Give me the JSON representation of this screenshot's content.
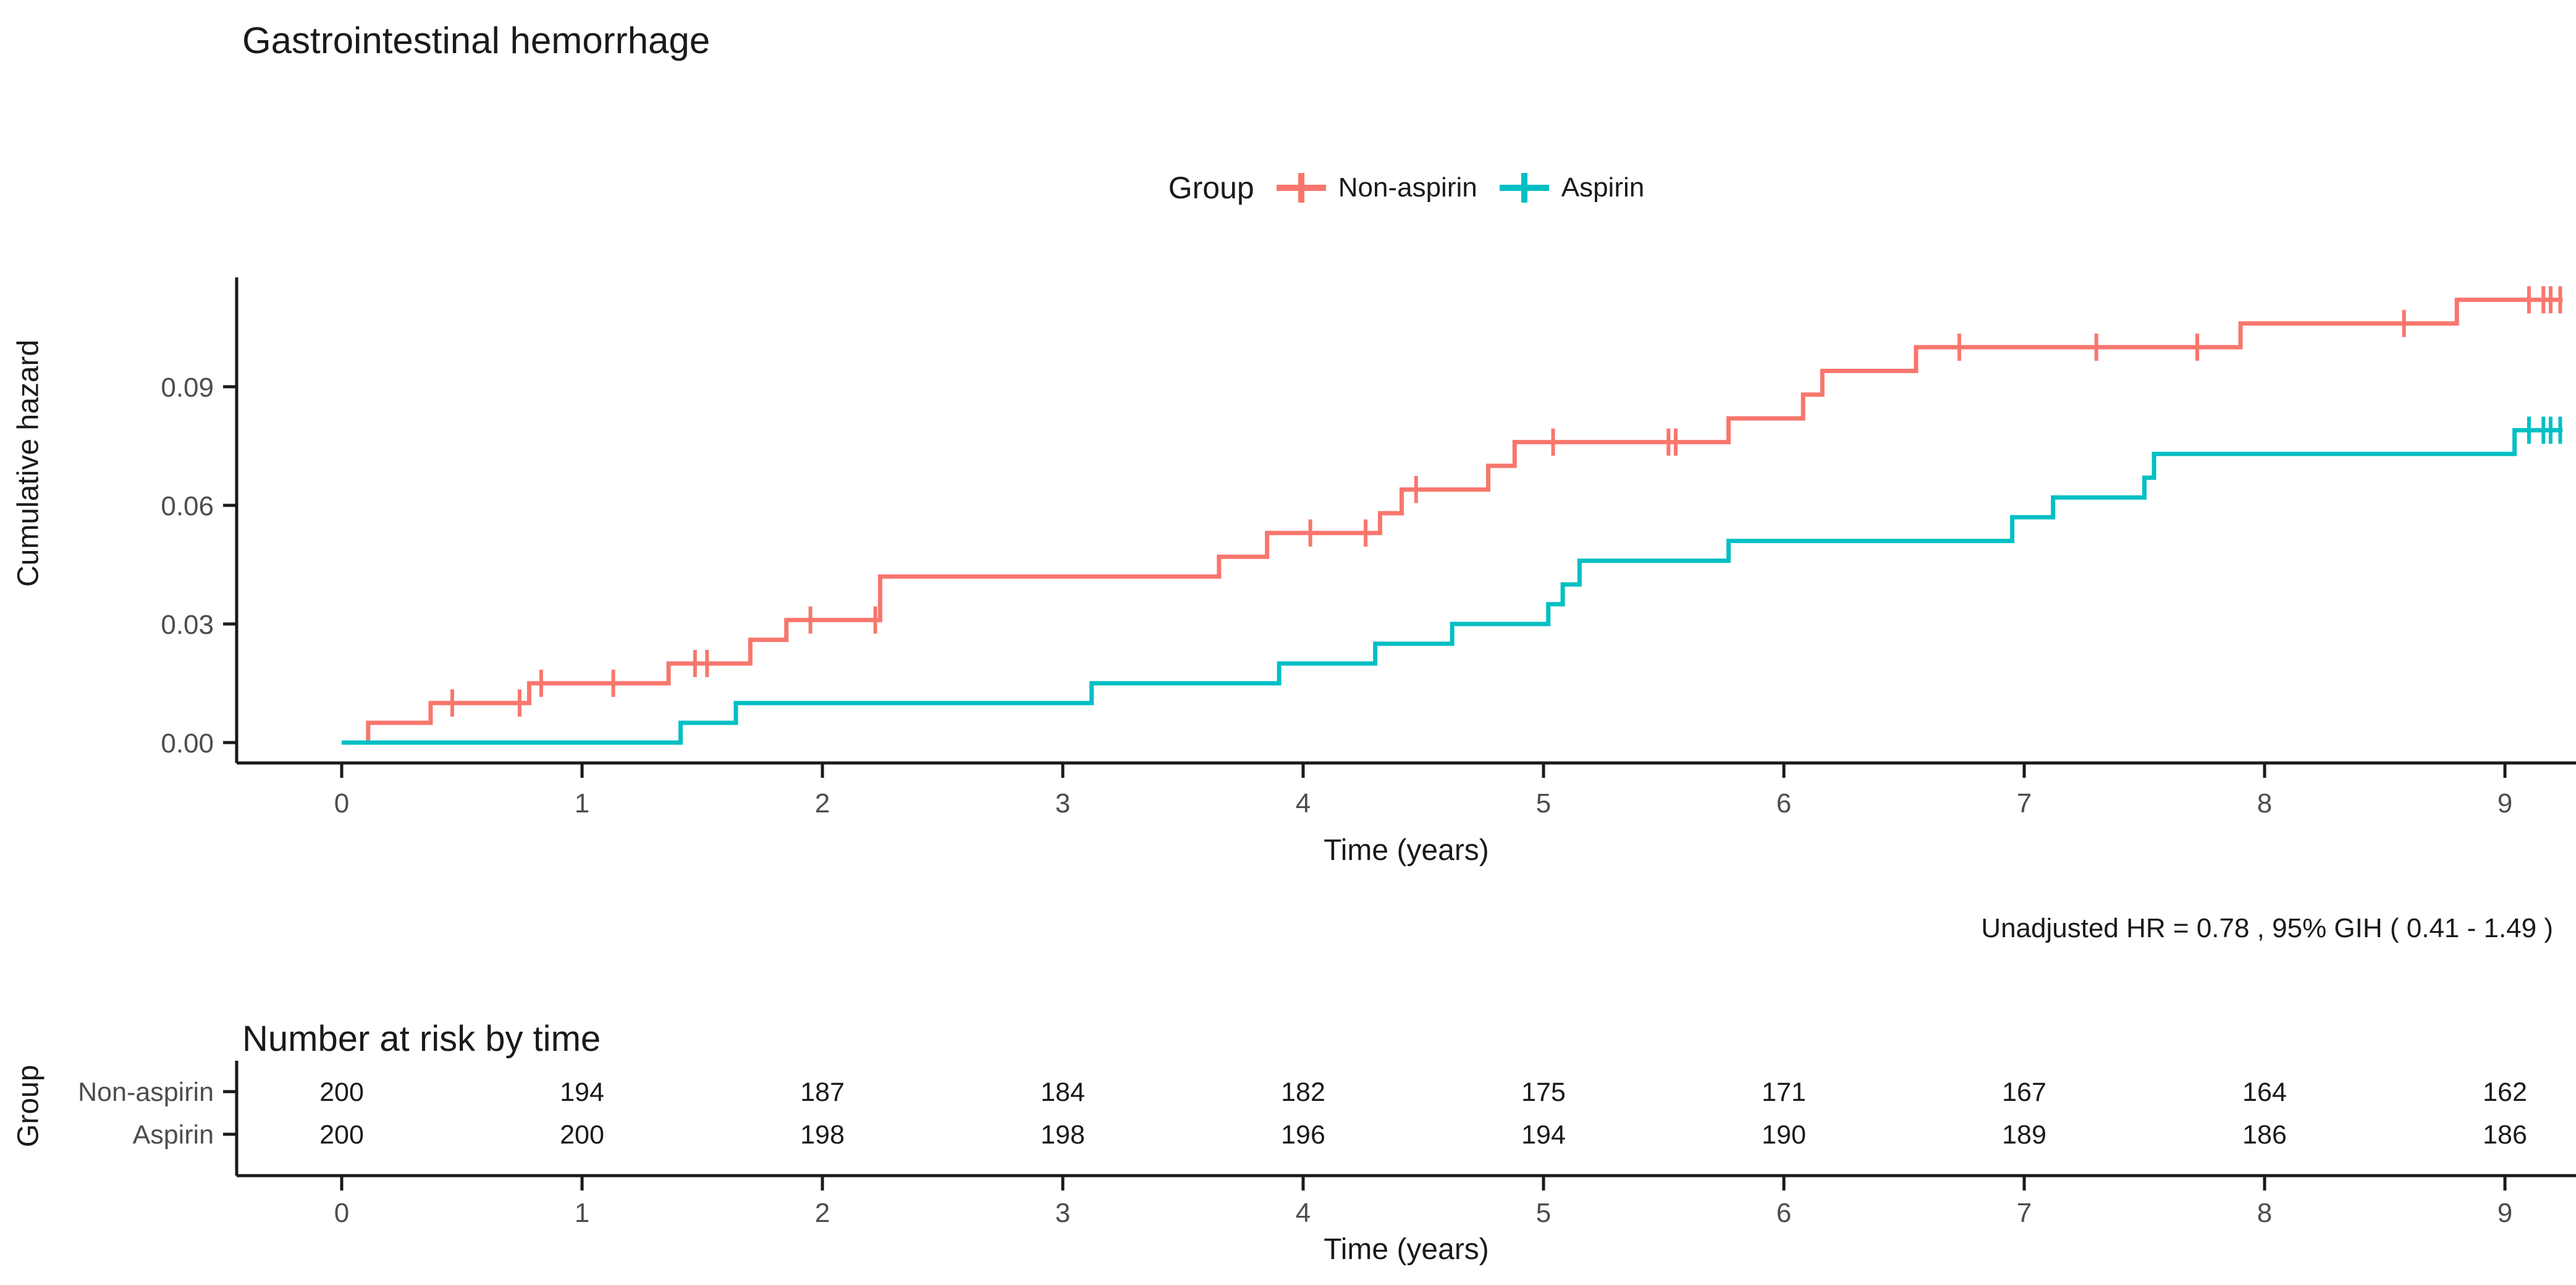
{
  "title": "Gastrointestinal hemorrhage",
  "legend": {
    "title": "Group",
    "items": [
      {
        "label": "Non-aspirin"
      },
      {
        "label": "Aspirin"
      }
    ]
  },
  "annotation": "Unadjusted HR = 0.78 , 95% GIH ( 0.41 - 1.49 )",
  "risk_table": {
    "title": "Number at risk by time",
    "y_axis_label": "Group",
    "x_axis_label": "Time (years)",
    "time_ticks": [
      0,
      1,
      2,
      3,
      4,
      5,
      6,
      7,
      8,
      9
    ],
    "rows": [
      {
        "label": "Non-aspirin",
        "values": [
          200,
          194,
          187,
          184,
          182,
          175,
          171,
          167,
          164,
          162
        ]
      },
      {
        "label": "Aspirin",
        "values": [
          200,
          200,
          198,
          198,
          196,
          194,
          190,
          189,
          186,
          186
        ]
      }
    ]
  },
  "chart_data": {
    "type": "line",
    "subtype": "step-cumulative-hazard",
    "title": "Gastrointestinal hemorrhage",
    "xlabel": "Time (years)",
    "ylabel": "Cumulative hazard",
    "xlim": [
      -0.15,
      9.3
    ],
    "ylim": [
      0,
      0.118
    ],
    "x_ticks": [
      0,
      1,
      2,
      3,
      4,
      5,
      6,
      7,
      8,
      9
    ],
    "y_ticks": [
      "0.00",
      "0.03",
      "0.06",
      "0.09"
    ],
    "grid": false,
    "legend_position": "top-center",
    "axis_text_color": "#4d4d4d",
    "axis_line_color": "#1a1a1a",
    "series": [
      {
        "name": "Non-aspirin",
        "color": "#F8766D",
        "end_time": 9.24,
        "steps": [
          [
            0.0,
            0.0
          ],
          [
            0.11,
            0.005
          ],
          [
            0.37,
            0.01
          ],
          [
            0.78,
            0.015
          ],
          [
            1.36,
            0.02
          ],
          [
            1.7,
            0.026
          ],
          [
            1.85,
            0.031
          ],
          [
            2.24,
            0.042
          ],
          [
            3.65,
            0.047
          ],
          [
            3.85,
            0.053
          ],
          [
            4.32,
            0.058
          ],
          [
            4.41,
            0.064
          ],
          [
            4.77,
            0.07
          ],
          [
            4.88,
            0.076
          ],
          [
            5.77,
            0.082
          ],
          [
            6.08,
            0.088
          ],
          [
            6.16,
            0.094
          ],
          [
            6.55,
            0.1
          ],
          [
            7.9,
            0.106
          ],
          [
            8.8,
            0.112
          ]
        ],
        "censors": [
          [
            0.46,
            0.01
          ],
          [
            0.74,
            0.01
          ],
          [
            0.83,
            0.015
          ],
          [
            1.13,
            0.015
          ],
          [
            1.47,
            0.02
          ],
          [
            1.52,
            0.02
          ],
          [
            1.95,
            0.031
          ],
          [
            2.22,
            0.031
          ],
          [
            4.03,
            0.053
          ],
          [
            4.26,
            0.053
          ],
          [
            4.47,
            0.064
          ],
          [
            5.04,
            0.076
          ],
          [
            5.52,
            0.076
          ],
          [
            5.55,
            0.076
          ],
          [
            6.73,
            0.1
          ],
          [
            7.3,
            0.1
          ],
          [
            7.72,
            0.1
          ],
          [
            8.58,
            0.106
          ],
          [
            9.1,
            0.112
          ],
          [
            9.16,
            0.112
          ],
          [
            9.19,
            0.112
          ],
          [
            9.23,
            0.112
          ]
        ]
      },
      {
        "name": "Aspirin",
        "color": "#00BFC4",
        "end_time": 9.24,
        "steps": [
          [
            0.0,
            0.0
          ],
          [
            1.41,
            0.005
          ],
          [
            1.64,
            0.01
          ],
          [
            3.12,
            0.015
          ],
          [
            3.9,
            0.02
          ],
          [
            4.3,
            0.025
          ],
          [
            4.62,
            0.03
          ],
          [
            5.02,
            0.035
          ],
          [
            5.08,
            0.04
          ],
          [
            5.15,
            0.046
          ],
          [
            5.77,
            0.051
          ],
          [
            6.95,
            0.057
          ],
          [
            7.12,
            0.062
          ],
          [
            7.5,
            0.067
          ],
          [
            7.54,
            0.073
          ],
          [
            9.04,
            0.079
          ]
        ],
        "censors": [
          [
            9.1,
            0.079
          ],
          [
            9.16,
            0.079
          ],
          [
            9.19,
            0.079
          ],
          [
            9.23,
            0.079
          ]
        ]
      }
    ]
  }
}
